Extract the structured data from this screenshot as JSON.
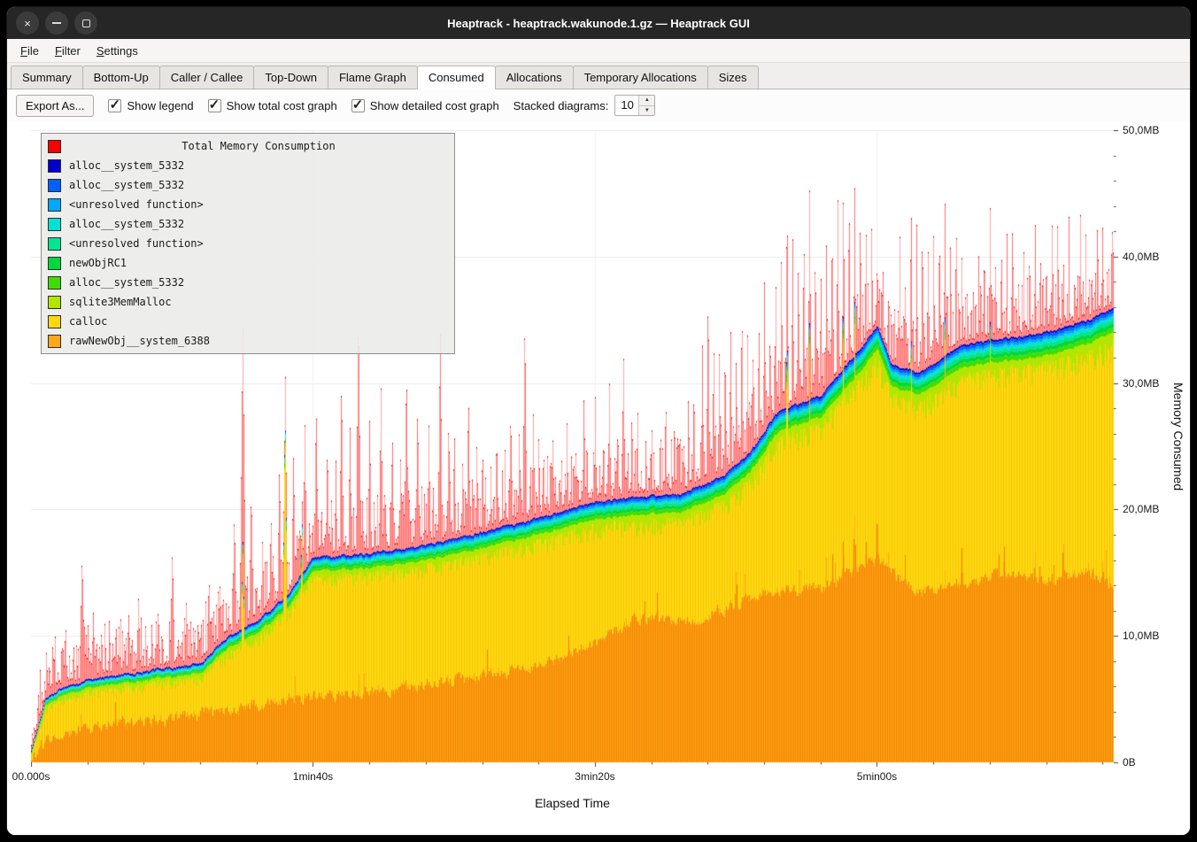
{
  "window": {
    "title": "Heaptrack - heaptrack.wakunode.1.gz — Heaptrack GUI"
  },
  "menu": {
    "items": [
      {
        "mnemonic": "F",
        "rest": "ile"
      },
      {
        "mnemonic": "F",
        "rest": "ilter"
      },
      {
        "mnemonic": "S",
        "rest": "ettings"
      }
    ]
  },
  "tabs": {
    "active_index": 5,
    "items": [
      {
        "label": "Summary"
      },
      {
        "label": "Bottom-Up"
      },
      {
        "label": "Caller / Callee"
      },
      {
        "label": "Top-Down"
      },
      {
        "label": "Flame Graph"
      },
      {
        "label": "Consumed"
      },
      {
        "label": "Allocations"
      },
      {
        "label": "Temporary Allocations"
      },
      {
        "label": "Sizes"
      }
    ]
  },
  "toolbar": {
    "export_label": "Export As...",
    "checkboxes": [
      {
        "label": "Show legend",
        "checked": true
      },
      {
        "label": "Show total cost graph",
        "checked": true
      },
      {
        "label": "Show detailed cost graph",
        "checked": true
      }
    ],
    "stacked_label": "Stacked diagrams:",
    "stacked_value": "10"
  },
  "chart_data": {
    "type": "area",
    "stacked": true,
    "title": "Total Memory Consumption",
    "xlabel": "Elapsed Time",
    "ylabel": "Memory Consumed",
    "ylim_mb": [
      0,
      50
    ],
    "x_range_s": [
      0,
      384
    ],
    "grid": true,
    "legend_position": "top-left",
    "y_ticks": [
      {
        "label": "0B",
        "mb": 0
      },
      {
        "label": "10,0MB",
        "mb": 10
      },
      {
        "label": "20,0MB",
        "mb": 20
      },
      {
        "label": "30,0MB",
        "mb": 30
      },
      {
        "label": "40,0MB",
        "mb": 40
      },
      {
        "label": "50,0MB",
        "mb": 50
      }
    ],
    "x_ticks": [
      {
        "label": "00.000s",
        "s": 0
      },
      {
        "label": "1min40s",
        "s": 100
      },
      {
        "label": "3min20s",
        "s": 200
      },
      {
        "label": "5min00s",
        "s": 300
      }
    ],
    "legend_title_color": "#ff0000",
    "total_color": "#ff0000",
    "legend_items": [
      {
        "name": "alloc__system_5332",
        "color": "#0000cc"
      },
      {
        "name": "alloc__system_5332",
        "color": "#0061ff"
      },
      {
        "name": "<unresolved function>",
        "color": "#00a8ff"
      },
      {
        "name": "alloc__system_5332",
        "color": "#00e2d5"
      },
      {
        "name": "<unresolved function>",
        "color": "#00e591"
      },
      {
        "name": "newObjRC1",
        "color": "#00d83b"
      },
      {
        "name": "alloc__system_5332",
        "color": "#41dc00"
      },
      {
        "name": "sqlite3MemMalloc",
        "color": "#b2e600"
      },
      {
        "name": "calloc",
        "color": "#ffd80e"
      },
      {
        "name": "rawNewObj__system_6388",
        "color": "#ffa819"
      }
    ],
    "upper_layer_weights": [
      0.4,
      0.12,
      0.11,
      0.09,
      0.08,
      0.07,
      0.08,
      0.05
    ],
    "keyframes": {
      "t": [
        0,
        5,
        10,
        20,
        40,
        60,
        70,
        80,
        90,
        100,
        120,
        140,
        160,
        180,
        200,
        215,
        230,
        245,
        255,
        265,
        280,
        295,
        300,
        305,
        315,
        330,
        345,
        360,
        375,
        384
      ],
      "stack_top_mb": [
        0.9,
        5.0,
        5.8,
        6.5,
        7.2,
        7.8,
        10.0,
        11.2,
        13.0,
        16.2,
        16.5,
        17.2,
        18.2,
        19.3,
        20.6,
        21.0,
        21.2,
        22.6,
        24.5,
        27.8,
        29.0,
        33.0,
        34.5,
        31.5,
        30.8,
        33.0,
        33.5,
        34.0,
        35.0,
        36.0
      ],
      "raw_new_obj_mb": [
        0.3,
        1.8,
        2.2,
        2.8,
        3.2,
        3.8,
        4.2,
        4.6,
        4.9,
        5.2,
        5.6,
        6.2,
        6.8,
        7.6,
        9.5,
        11.5,
        11.0,
        12.0,
        13.0,
        13.5,
        13.8,
        15.5,
        16.0,
        15.0,
        13.5,
        14.0,
        15.0,
        14.5,
        15.0,
        14.0
      ],
      "upper_band_mb": [
        0.4,
        0.9,
        1.0,
        1.1,
        1.2,
        1.3,
        1.5,
        1.6,
        1.7,
        1.8,
        1.9,
        2.0,
        2.1,
        2.2,
        2.3,
        2.4,
        2.4,
        2.5,
        2.6,
        2.7,
        2.8,
        3.0,
        3.0,
        2.9,
        2.9,
        3.0,
        3.0,
        3.1,
        3.1,
        3.2
      ]
    },
    "total_spikes": [
      [
        8,
        9
      ],
      [
        12,
        10
      ],
      [
        15,
        9.5
      ],
      [
        18,
        16.6
      ],
      [
        22,
        12
      ],
      [
        25,
        10
      ],
      [
        30,
        11
      ],
      [
        33,
        9.5
      ],
      [
        38,
        13
      ],
      [
        41,
        10
      ],
      [
        45,
        12.5
      ],
      [
        50,
        17
      ],
      [
        55,
        13
      ],
      [
        58,
        11
      ],
      [
        60,
        10
      ],
      [
        63,
        15
      ],
      [
        68,
        14
      ],
      [
        72,
        20
      ],
      [
        75,
        35.2
      ],
      [
        78,
        22
      ],
      [
        82,
        18
      ],
      [
        85,
        20
      ],
      [
        88,
        24
      ],
      [
        90,
        29
      ],
      [
        93,
        25
      ],
      [
        97,
        27
      ],
      [
        101,
        29
      ],
      [
        105,
        26
      ],
      [
        108,
        24
      ],
      [
        110,
        31
      ],
      [
        113,
        27
      ],
      [
        116,
        36.8
      ],
      [
        120,
        28
      ],
      [
        124,
        30
      ],
      [
        128,
        27
      ],
      [
        131,
        25
      ],
      [
        133,
        32
      ],
      [
        137,
        29
      ],
      [
        141,
        27
      ],
      [
        145,
        35.2
      ],
      [
        148,
        28
      ],
      [
        150,
        27
      ],
      [
        153,
        25
      ],
      [
        155,
        30
      ],
      [
        158,
        26
      ],
      [
        160,
        26
      ],
      [
        163,
        24
      ],
      [
        165,
        27
      ],
      [
        168,
        25
      ],
      [
        170,
        29
      ],
      [
        173,
        26
      ],
      [
        175,
        36
      ],
      [
        178,
        28
      ],
      [
        180,
        27
      ],
      [
        183,
        25
      ],
      [
        185,
        26.5
      ],
      [
        188,
        25
      ],
      [
        190,
        27.5
      ],
      [
        193,
        26
      ],
      [
        196,
        30
      ],
      [
        200,
        29
      ],
      [
        203,
        27
      ],
      [
        205,
        30.5
      ],
      [
        208,
        28
      ],
      [
        210,
        33
      ],
      [
        213,
        29
      ],
      [
        215,
        29
      ],
      [
        218,
        27
      ],
      [
        220,
        28
      ],
      [
        223,
        26
      ],
      [
        225,
        30
      ],
      [
        228,
        27
      ],
      [
        230,
        28
      ],
      [
        233,
        29
      ],
      [
        235,
        31
      ],
      [
        238,
        33
      ],
      [
        240,
        38
      ],
      [
        242,
        34
      ],
      [
        244,
        33
      ],
      [
        246,
        34
      ],
      [
        248,
        35
      ],
      [
        250,
        33
      ],
      [
        252,
        37
      ],
      [
        254,
        34
      ],
      [
        256,
        34
      ],
      [
        258,
        36
      ],
      [
        260,
        38.5
      ],
      [
        262,
        36
      ],
      [
        264,
        39
      ],
      [
        266,
        41
      ],
      [
        268,
        45.6
      ],
      [
        270,
        42
      ],
      [
        272,
        41
      ],
      [
        274,
        43
      ],
      [
        276,
        45.5
      ],
      [
        278,
        42
      ],
      [
        280,
        40
      ],
      [
        282,
        42
      ],
      [
        284,
        44
      ],
      [
        286,
        45.5
      ],
      [
        288,
        46.5
      ],
      [
        290,
        46
      ],
      [
        292,
        45.5
      ],
      [
        294,
        45
      ],
      [
        296,
        44
      ],
      [
        298,
        43
      ],
      [
        300,
        42.5
      ],
      [
        302,
        40
      ],
      [
        304,
        38
      ],
      [
        306,
        39
      ],
      [
        308,
        42
      ],
      [
        310,
        40
      ],
      [
        312,
        45.8
      ],
      [
        314,
        43
      ],
      [
        316,
        44
      ],
      [
        318,
        42
      ],
      [
        320,
        43
      ],
      [
        322,
        44
      ],
      [
        324,
        45
      ],
      [
        326,
        43
      ],
      [
        328,
        44.5
      ],
      [
        330,
        40
      ],
      [
        332,
        40
      ],
      [
        334,
        39
      ],
      [
        336,
        41
      ],
      [
        338,
        43
      ],
      [
        340,
        45
      ],
      [
        342,
        41
      ],
      [
        344,
        43
      ],
      [
        346,
        42
      ],
      [
        348,
        44.8
      ],
      [
        350,
        40
      ],
      [
        352,
        41
      ],
      [
        354,
        43
      ],
      [
        356,
        44
      ],
      [
        358,
        41
      ],
      [
        360,
        42
      ],
      [
        362,
        43
      ],
      [
        364,
        45
      ],
      [
        366,
        42
      ],
      [
        368,
        43.5
      ],
      [
        370,
        41
      ],
      [
        372,
        45.2
      ],
      [
        374,
        43
      ],
      [
        376,
        42
      ],
      [
        378,
        43
      ],
      [
        380,
        44.5
      ],
      [
        382,
        42
      ],
      [
        383.5,
        45.5
      ]
    ],
    "stack_spikes": [
      [
        75,
        18
      ],
      [
        90,
        28.7
      ],
      [
        96,
        20
      ],
      [
        268,
        36.5
      ],
      [
        276,
        35
      ],
      [
        288,
        37.5
      ],
      [
        292,
        36.5
      ],
      [
        300,
        35.7
      ],
      [
        312,
        36
      ],
      [
        324,
        36
      ],
      [
        340,
        36
      ],
      [
        364,
        36.5
      ],
      [
        372,
        36
      ]
    ],
    "orange_spikes": [
      [
        222,
        13.5
      ],
      [
        250,
        15.5
      ],
      [
        288,
        18
      ],
      [
        292,
        19.5
      ],
      [
        296,
        18
      ],
      [
        300,
        20
      ],
      [
        304,
        17
      ],
      [
        330,
        17
      ],
      [
        345,
        17.5
      ],
      [
        356,
        17
      ],
      [
        366,
        18
      ],
      [
        375,
        16.5
      ],
      [
        380,
        16.5
      ]
    ]
  }
}
